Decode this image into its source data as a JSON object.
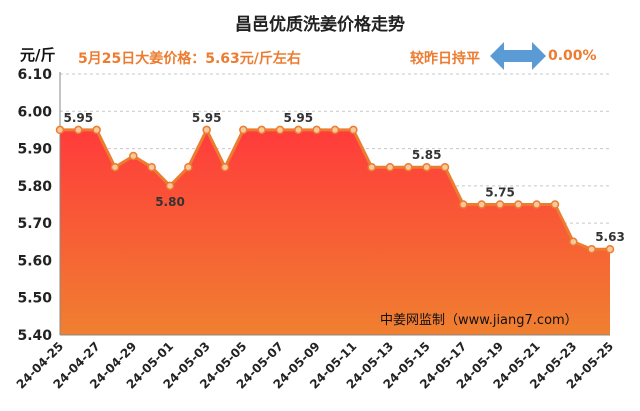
{
  "chart_data": {
    "type": "area",
    "title": "昌邑优质洗姜价格走势",
    "ylabel": "元/斤",
    "ylim": [
      5.4,
      6.1
    ],
    "yticks": [
      "5.40",
      "5.50",
      "5.60",
      "5.70",
      "5.80",
      "5.90",
      "6.00",
      "6.10"
    ],
    "grid": true,
    "x": [
      "24-04-25",
      "24-04-26",
      "24-04-27",
      "24-04-28",
      "24-04-29",
      "24-04-30",
      "24-05-01",
      "24-05-02",
      "24-05-03",
      "24-05-04",
      "24-05-05",
      "24-05-06",
      "24-05-07",
      "24-05-08",
      "24-05-09",
      "24-05-10",
      "24-05-11",
      "24-05-12",
      "24-05-13",
      "24-05-14",
      "24-05-15",
      "24-05-16",
      "24-05-17",
      "24-05-18",
      "24-05-19",
      "24-05-20",
      "24-05-21",
      "24-05-22",
      "24-05-23",
      "24-05-24",
      "24-05-25"
    ],
    "xtick_labels": [
      "24-04-25",
      "24-04-27",
      "24-04-29",
      "24-05-01",
      "24-05-03",
      "24-05-05",
      "24-05-07",
      "24-05-09",
      "24-05-11",
      "24-05-13",
      "24-05-15",
      "24-05-17",
      "24-05-19",
      "24-05-21",
      "24-05-23",
      "24-05-25"
    ],
    "values": [
      5.95,
      5.95,
      5.95,
      5.85,
      5.88,
      5.85,
      5.8,
      5.85,
      5.95,
      5.85,
      5.95,
      5.95,
      5.95,
      5.95,
      5.95,
      5.95,
      5.95,
      5.85,
      5.85,
      5.85,
      5.85,
      5.85,
      5.75,
      5.75,
      5.75,
      5.75,
      5.75,
      5.75,
      5.65,
      5.63,
      5.63
    ],
    "data_labels": [
      {
        "index": 1,
        "text": "5.95",
        "pos": "above"
      },
      {
        "index": 6,
        "text": "5.80",
        "pos": "below"
      },
      {
        "index": 8,
        "text": "5.95",
        "pos": "above"
      },
      {
        "index": 13,
        "text": "5.95",
        "pos": "above"
      },
      {
        "index": 20,
        "text": "5.85",
        "pos": "above"
      },
      {
        "index": 24,
        "text": "5.75",
        "pos": "above"
      },
      {
        "index": 30,
        "text": "5.63",
        "pos": "above"
      }
    ],
    "colors": {
      "line": "#ec7c30",
      "marker_fill": "#f6c89b",
      "fill_top": "#ff3b3b",
      "fill_bottom": "#f08030"
    }
  },
  "header": {
    "unit": "元/斤",
    "price_note": "5月25日大姜价格：5.63元/斤左右",
    "compare_label": "较昨日持平",
    "change_value": "0.00%",
    "arrow_icon": "double-arrow-icon",
    "arrow_color": "#5b9bd5"
  },
  "source": "中姜网监制（www.jiang7.com）"
}
